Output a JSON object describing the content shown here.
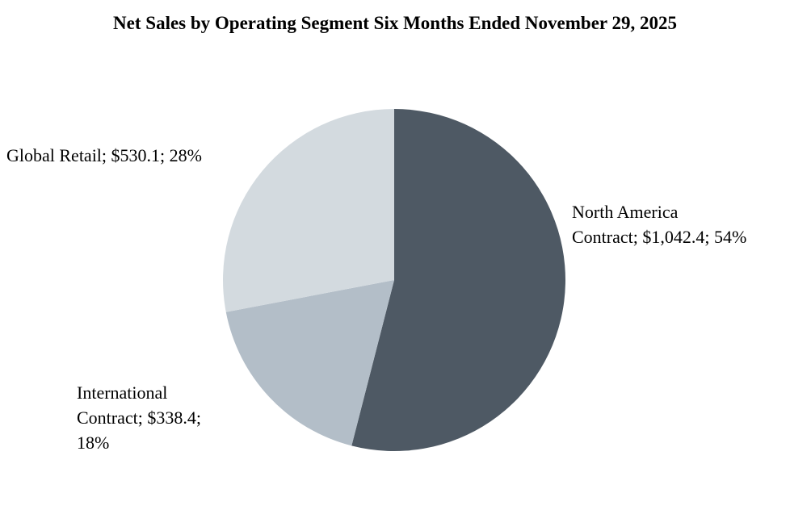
{
  "title": "Net Sales by Operating Segment Six Months Ended November 29, 2025",
  "chart_data": {
    "type": "pie",
    "title": "Net Sales by Operating Segment Six Months Ended November 29, 2025",
    "start_angle_deg": 0,
    "direction": "clockwise",
    "legend": "none",
    "segments": [
      {
        "name": "North America Contract",
        "value": 1042.4,
        "value_label": "$1,042.4",
        "percent": 54,
        "color": "#4e5964"
      },
      {
        "name": "International Contract",
        "value": 338.4,
        "value_label": "$338.4",
        "percent": 18,
        "color": "#b3bec8"
      },
      {
        "name": "Global Retail",
        "value": 530.1,
        "value_label": "$530.1",
        "percent": 28,
        "color": "#d3dadf"
      }
    ]
  },
  "labels": {
    "global_retail": {
      "lines": [
        "Global Retail; $530.1; 28%"
      ]
    },
    "north_america": {
      "lines": [
        "North America",
        "Contract; $1,042.4; 54%"
      ]
    },
    "international": {
      "lines": [
        "International",
        "Contract; $338.4;",
        "18%"
      ]
    }
  }
}
